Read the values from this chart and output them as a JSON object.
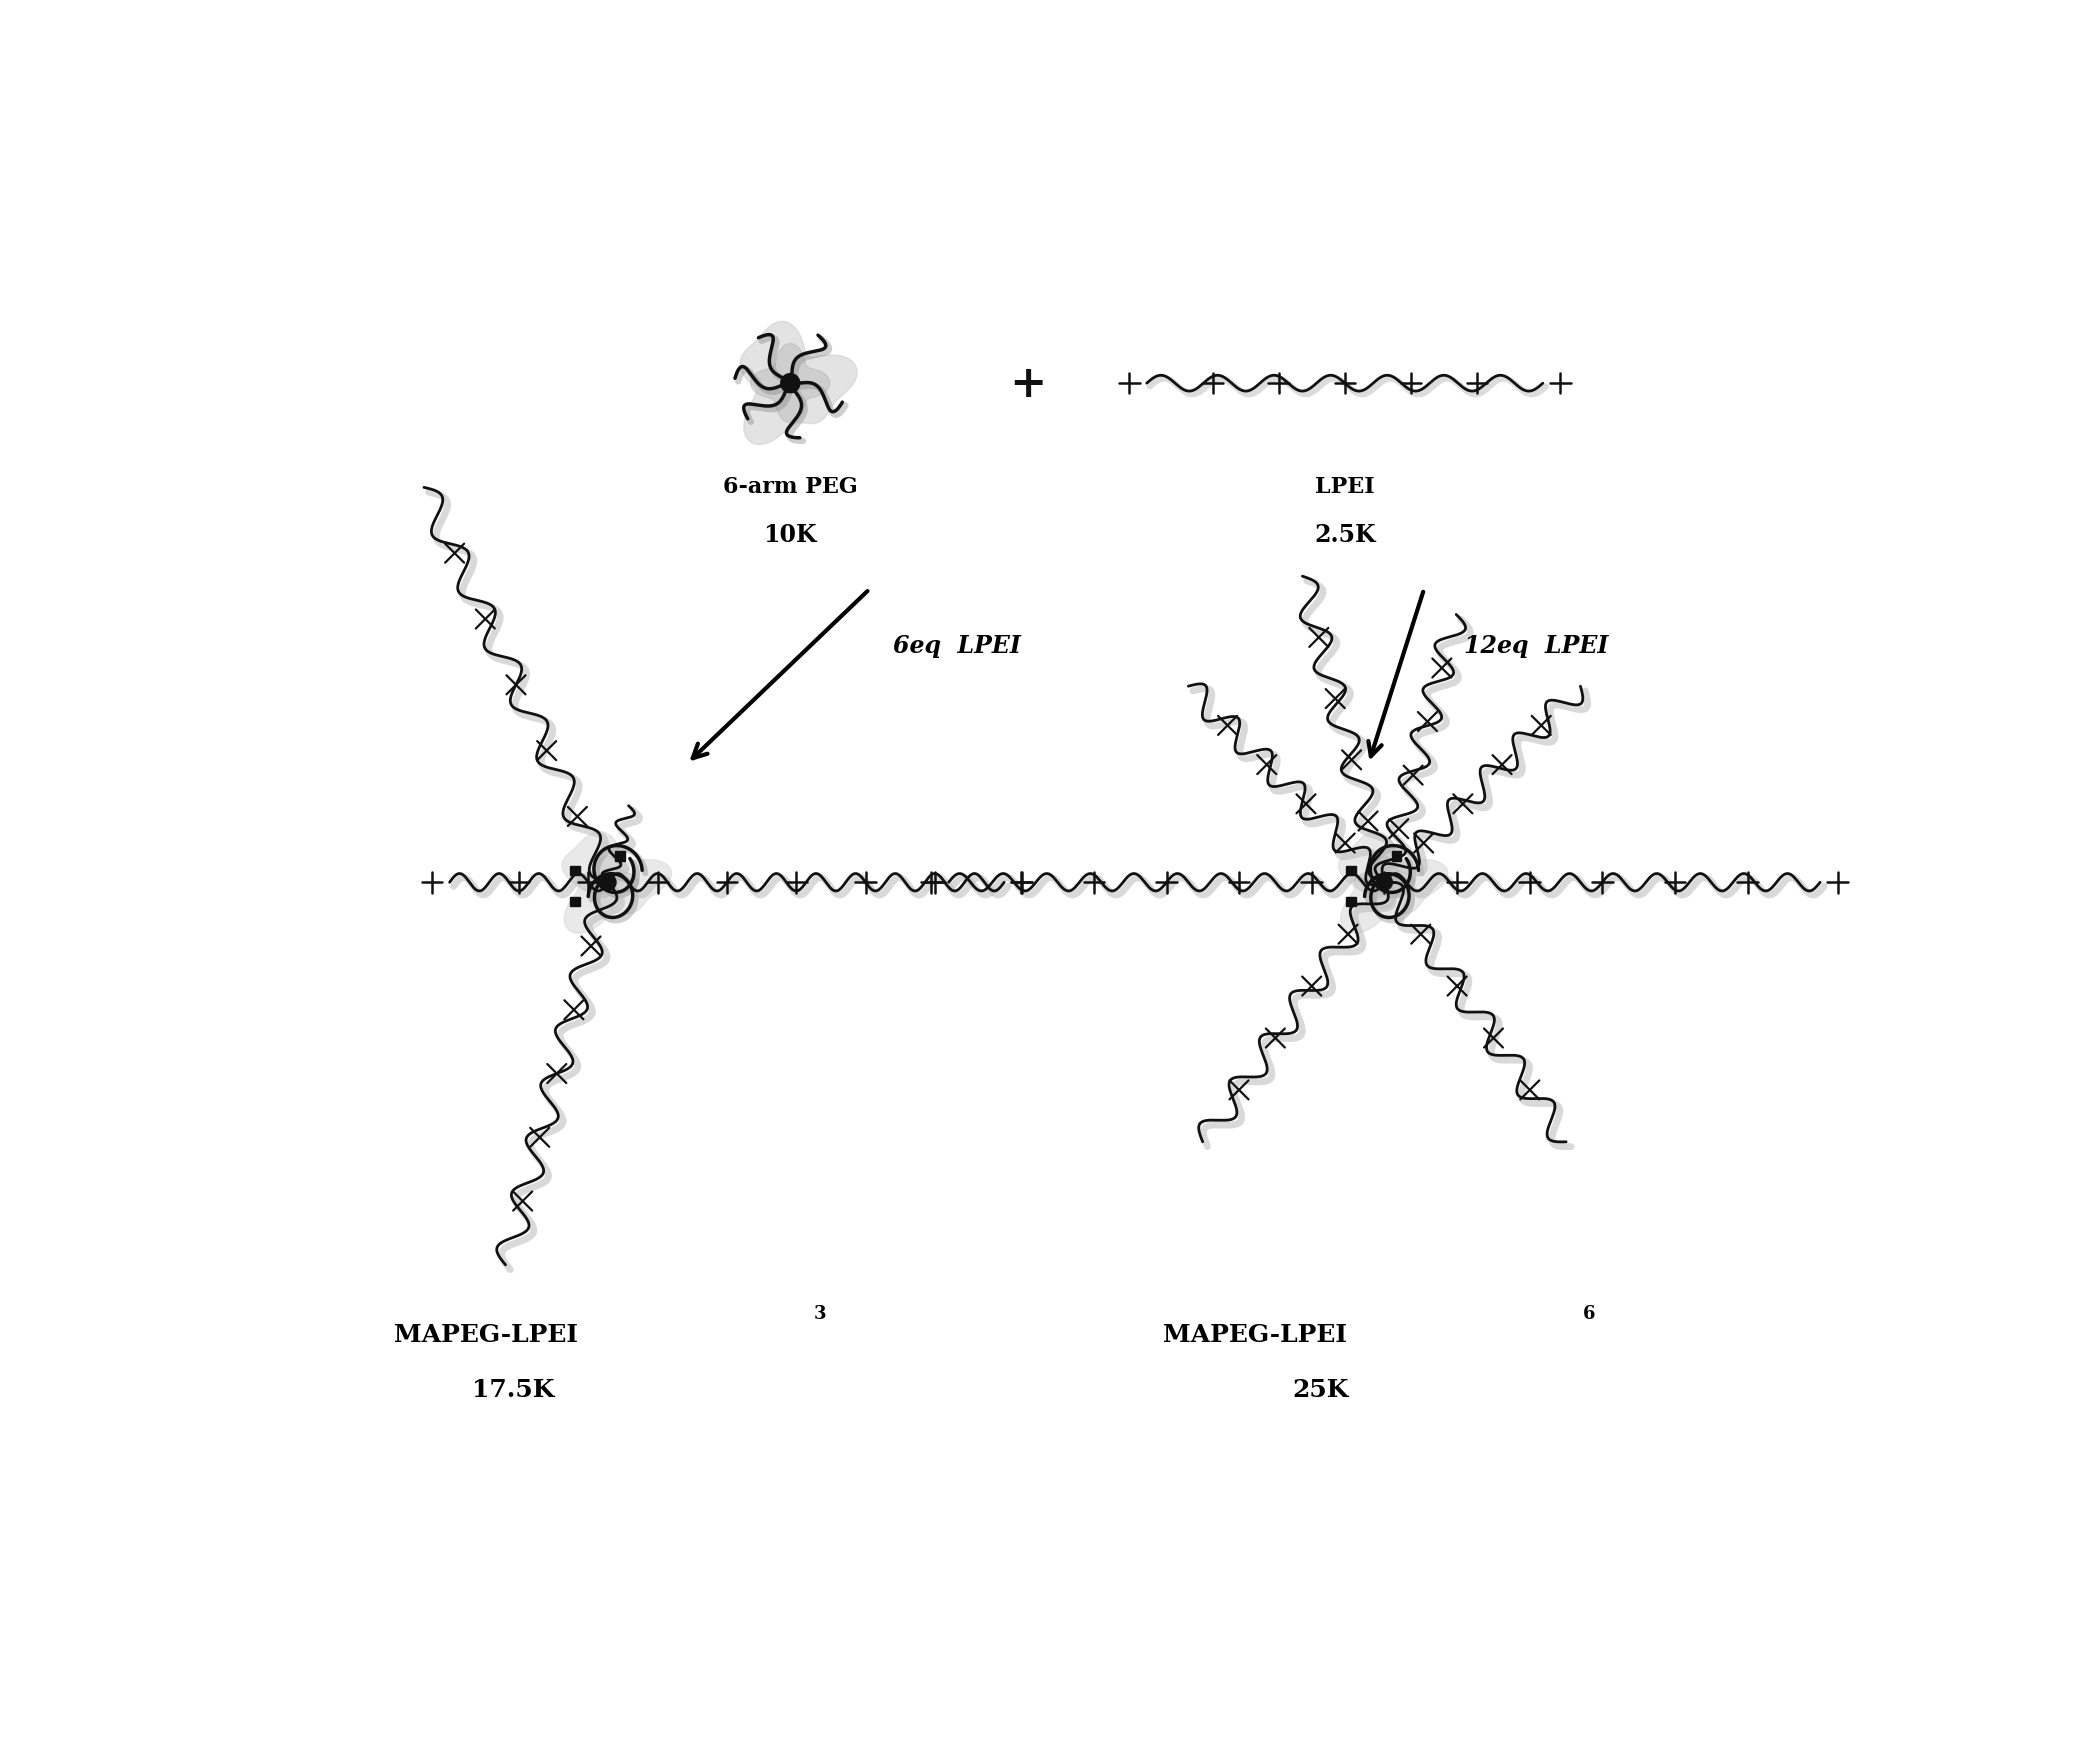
{
  "background_color": "#ffffff",
  "labels": {
    "peg_arm": "6-arm PEG",
    "peg_mw": "10K",
    "lpei": "LPEI",
    "lpei_mw": "2.5K",
    "arrow1_label": "6eq  LPEI",
    "arrow2_label": "12eq  LPEI",
    "product1_name": "MAPEG-LPEI",
    "product1_sub": "3",
    "product1_mw": "17.5K",
    "product2_name": "MAPEG-LPEI",
    "product2_sub": "6",
    "product2_mw": "25K"
  },
  "colors": {
    "molecule": "#111111",
    "shadow": "#bbbbbb",
    "text": "#000000",
    "arrow": "#000000"
  },
  "layout": {
    "fig_width": 20.83,
    "fig_height": 17.49,
    "dpi": 100
  }
}
